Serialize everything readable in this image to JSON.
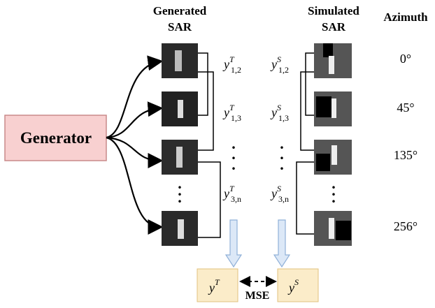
{
  "header": {
    "generated": [
      "Generated",
      "SAR"
    ],
    "simulated": [
      "Simulated",
      "SAR"
    ],
    "azimuth": "Azimuth"
  },
  "generator": "Generator",
  "azimuths": [
    "0°",
    "45°",
    "135°",
    "256°"
  ],
  "target_labels": [
    {
      "base": "y",
      "sup": "T",
      "sub": "1,2"
    },
    {
      "base": "y",
      "sup": "T",
      "sub": "1,3"
    },
    {
      "base": "y",
      "sup": "T",
      "sub": "3,n"
    }
  ],
  "source_labels": [
    {
      "base": "y",
      "sup": "S",
      "sub": "1,2"
    },
    {
      "base": "y",
      "sup": "S",
      "sub": "1,3"
    },
    {
      "base": "y",
      "sup": "S",
      "sub": "3,n"
    }
  ],
  "outputs": {
    "target": {
      "base": "y",
      "sup": "T"
    },
    "source": {
      "base": "y",
      "sup": "S"
    },
    "loss": "MSE"
  }
}
